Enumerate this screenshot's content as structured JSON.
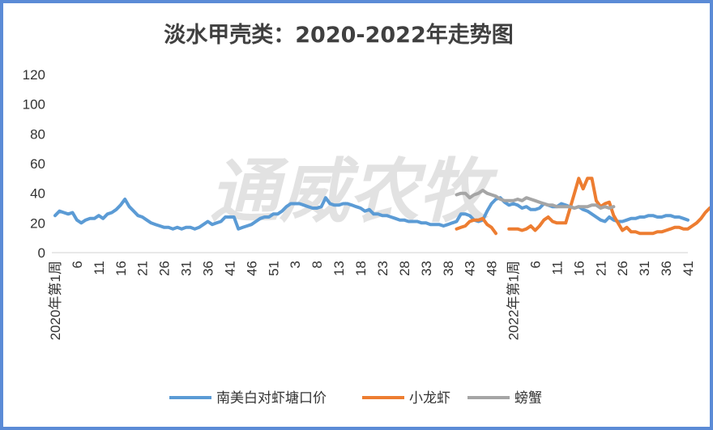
{
  "watermark_text": "通威农牧",
  "chart_data": {
    "type": "line",
    "title": "淡水甲壳类：2020-2022年走势图",
    "xlabel": "",
    "ylabel": "",
    "ylim": [
      0,
      120
    ],
    "yticks": [
      0,
      20,
      40,
      60,
      80,
      100,
      120
    ],
    "grid": false,
    "legend_position": "bottom",
    "x_tick_labels": [
      {
        "x": 1,
        "label": "2020年第1周"
      },
      {
        "x": 6,
        "label": "6"
      },
      {
        "x": 11,
        "label": "11"
      },
      {
        "x": 16,
        "label": "16"
      },
      {
        "x": 21,
        "label": "21"
      },
      {
        "x": 26,
        "label": "26"
      },
      {
        "x": 31,
        "label": "31"
      },
      {
        "x": 36,
        "label": "36"
      },
      {
        "x": 41,
        "label": "41"
      },
      {
        "x": 46,
        "label": "46"
      },
      {
        "x": 51,
        "label": "51"
      },
      {
        "x": 56,
        "label": "3"
      },
      {
        "x": 61,
        "label": "8"
      },
      {
        "x": 66,
        "label": "13"
      },
      {
        "x": 71,
        "label": "18"
      },
      {
        "x": 76,
        "label": "23"
      },
      {
        "x": 81,
        "label": "28"
      },
      {
        "x": 86,
        "label": "33"
      },
      {
        "x": 91,
        "label": "38"
      },
      {
        "x": 96,
        "label": "43"
      },
      {
        "x": 101,
        "label": "48"
      },
      {
        "x": 106,
        "label": "2022年第1周"
      },
      {
        "x": 111,
        "label": "6"
      },
      {
        "x": 116,
        "label": "11"
      },
      {
        "x": 121,
        "label": "16"
      },
      {
        "x": 126,
        "label": "21"
      },
      {
        "x": 131,
        "label": "26"
      },
      {
        "x": 136,
        "label": "31"
      },
      {
        "x": 141,
        "label": "36"
      },
      {
        "x": 146,
        "label": "41"
      }
    ],
    "x_range": [
      1,
      146
    ],
    "series": [
      {
        "name": "南美白对虾塘口价",
        "color": "#5b9bd5",
        "x_start": 1,
        "values": [
          25,
          28,
          27,
          26,
          27,
          22,
          20,
          22,
          23,
          23,
          25,
          23,
          26,
          27,
          29,
          32,
          36,
          31,
          28,
          25,
          24,
          22,
          20,
          19,
          18,
          17,
          17,
          16,
          17,
          16,
          17,
          17,
          16,
          17,
          19,
          21,
          19,
          20,
          21,
          24,
          24,
          24,
          16,
          17,
          18,
          19,
          21,
          23,
          24,
          24,
          26,
          26,
          28,
          31,
          33,
          33,
          33,
          32,
          31,
          30,
          30,
          31,
          37,
          33,
          32,
          32,
          33,
          33,
          32,
          31,
          30,
          28,
          29,
          26,
          26,
          25,
          25,
          24,
          23,
          22,
          22,
          21,
          21,
          21,
          20,
          20,
          19,
          19,
          19,
          18,
          19,
          20,
          21,
          26,
          26,
          25,
          22,
          21,
          22,
          28,
          33,
          36,
          37,
          34,
          32,
          33,
          32,
          30,
          31,
          29,
          29,
          30,
          33,
          32,
          31,
          31,
          33,
          32,
          31,
          30,
          31,
          29,
          28,
          26,
          24,
          22,
          21,
          24,
          22,
          21,
          21,
          22,
          23,
          23,
          24,
          24,
          25,
          25,
          24,
          24,
          25,
          25,
          24,
          24,
          23,
          22
        ]
      },
      {
        "name": "小龙虾",
        "color": "#ed7d31",
        "x_start": 93,
        "values": [
          null,
          null,
          null,
          null,
          null,
          null,
          null,
          null,
          null,
          null,
          null,
          null,
          null,
          null,
          null,
          null,
          null,
          null,
          null,
          null,
          null,
          null,
          null,
          null,
          null,
          null,
          null,
          null,
          null,
          null,
          null,
          null,
          null,
          null,
          null,
          null,
          null,
          null,
          null,
          null,
          null,
          null,
          null,
          null,
          null,
          null,
          null,
          null,
          null,
          null,
          null,
          null,
          null,
          null
        ]
      },
      {
        "name": "螃蟹",
        "color": "#a5a5a5",
        "x_start": 94,
        "values": [
          null
        ]
      }
    ]
  }
}
